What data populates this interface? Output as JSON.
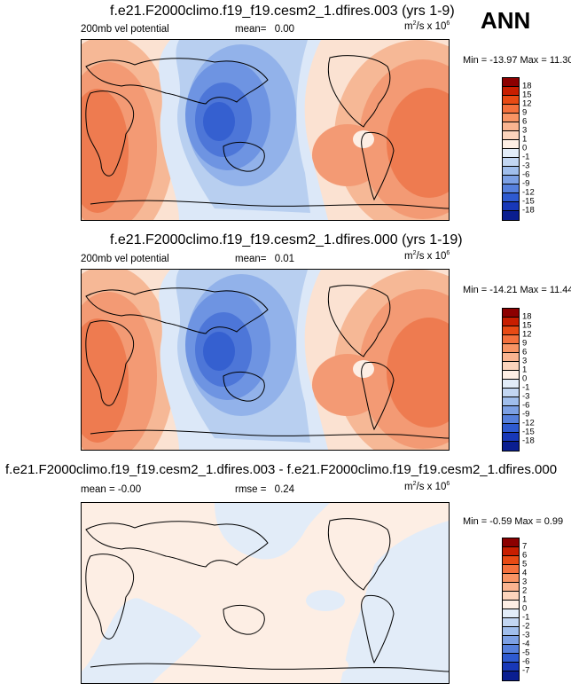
{
  "header": {
    "season": "ANN"
  },
  "panels": [
    {
      "title": "f.e21.F2000climo.f19_f19.cesm2_1.dfires.003 (yrs 1-9)",
      "variable": "200mb vel potential",
      "stat_label": "mean=",
      "stat_value": "0.00",
      "units_base": "m",
      "units_exp1": "2",
      "units_mid": "/s x 10",
      "units_exp2": "6",
      "minmax": "Min = -13.97 Max = 11.30",
      "colorbar": {
        "labels": [
          "18",
          "15",
          "12",
          "9",
          "6",
          "3",
          "1",
          "0",
          "-1",
          "-3",
          "-6",
          "-9",
          "-12",
          "-15",
          "-18"
        ],
        "colors": [
          "#8c0000",
          "#c81e00",
          "#e84a14",
          "#f4703c",
          "#f89464",
          "#fab490",
          "#fcd4bc",
          "#fdeee4",
          "#e2ecf8",
          "#c2d6f2",
          "#a0beec",
          "#7ca0e4",
          "#5680dc",
          "#2e5ad0",
          "#1838b8",
          "#0a1e90"
        ]
      }
    },
    {
      "title": "f.e21.F2000climo.f19_f19.cesm2_1.dfires.000 (yrs 1-19)",
      "variable": "200mb vel potential",
      "stat_label": "mean=",
      "stat_value": "0.01",
      "units_base": "m",
      "units_exp1": "2",
      "units_mid": "/s x 10",
      "units_exp2": "6",
      "minmax": "Min = -14.21 Max = 11.44",
      "colorbar": {
        "labels": [
          "18",
          "15",
          "12",
          "9",
          "6",
          "3",
          "1",
          "0",
          "-1",
          "-3",
          "-6",
          "-9",
          "-12",
          "-15",
          "-18"
        ],
        "colors": [
          "#8c0000",
          "#c81e00",
          "#e84a14",
          "#f4703c",
          "#f89464",
          "#fab490",
          "#fcd4bc",
          "#fdeee4",
          "#e2ecf8",
          "#c2d6f2",
          "#a0beec",
          "#7ca0e4",
          "#5680dc",
          "#2e5ad0",
          "#1838b8",
          "#0a1e90"
        ]
      }
    },
    {
      "title": "f.e21.F2000climo.f19_f19.cesm2_1.dfires.003 - f.e21.F2000climo.f19_f19.cesm2_1.dfires.000",
      "variable": "mean = -0.00",
      "stat_label": "rmse =",
      "stat_value": "0.24",
      "units_base": "m",
      "units_exp1": "2",
      "units_mid": "/s x 10",
      "units_exp2": "6",
      "minmax": "Min = -0.59 Max = 0.99",
      "colorbar": {
        "labels": [
          "7",
          "6",
          "5",
          "4",
          "3",
          "2",
          "1",
          "0",
          "-1",
          "-2",
          "-3",
          "-4",
          "-5",
          "-6",
          "-7"
        ],
        "colors": [
          "#8c0000",
          "#c81e00",
          "#e84a14",
          "#f4703c",
          "#f89464",
          "#fab490",
          "#fcd4bc",
          "#fdeee4",
          "#e2ecf8",
          "#c2d6f2",
          "#a0beec",
          "#7ca0e4",
          "#5680dc",
          "#2e5ad0",
          "#1838b8",
          "#0a1e90"
        ]
      }
    }
  ]
}
